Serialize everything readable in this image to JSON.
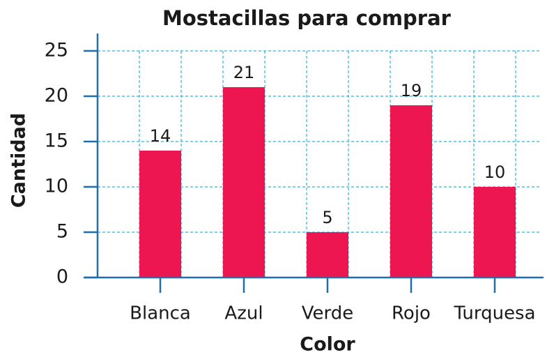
{
  "chart_data": {
    "type": "bar",
    "title": "Mostacillas para comprar",
    "x_label": "Color",
    "y_label": "Cantidad",
    "categories": [
      "Blanca",
      "Azul",
      "Verde",
      "Rojo",
      "Turquesa"
    ],
    "values": [
      14,
      21,
      5,
      19,
      10
    ],
    "color": "#ee1651",
    "ylim": [
      0,
      25
    ],
    "yticks": [
      0,
      5,
      10,
      15,
      20,
      25
    ],
    "grid": true
  }
}
